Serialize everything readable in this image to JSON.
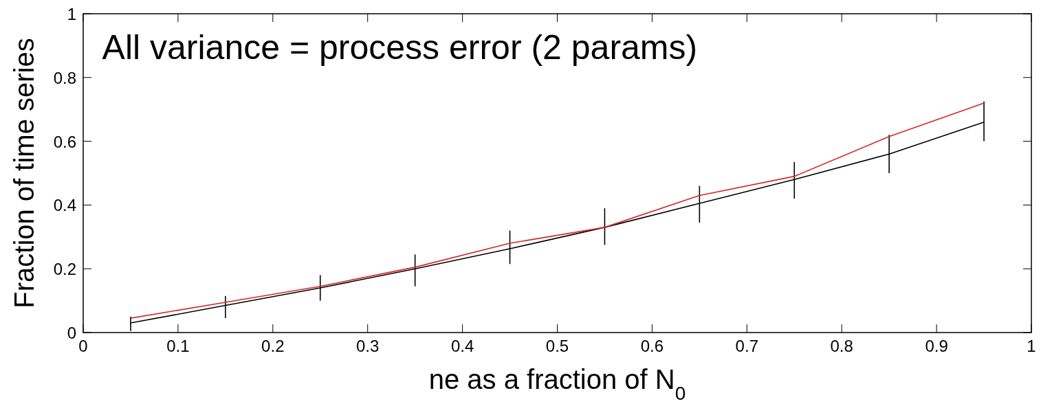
{
  "chart_data": {
    "type": "line",
    "title": "All variance = process error (2 params)",
    "xlabel": "ne as a fraction of N$_{0}$",
    "ylabel": "Fraction of time series",
    "x": [
      0.05,
      0.15,
      0.25,
      0.35,
      0.45,
      0.55,
      0.65,
      0.75,
      0.85,
      0.95
    ],
    "series": [
      {
        "color": "#000000",
        "values": [
          0.03,
          0.085,
          0.14,
          0.2,
          0.263,
          0.33,
          0.405,
          0.48,
          0.56,
          0.66
        ],
        "errors": [
          [
            0.005,
            0.05
          ],
          [
            0.045,
            0.115
          ],
          [
            0.1,
            0.18
          ],
          [
            0.145,
            0.245
          ],
          [
            0.215,
            0.32
          ],
          [
            0.275,
            0.39
          ],
          [
            0.345,
            0.46
          ],
          [
            0.42,
            0.535
          ],
          [
            0.5,
            0.62
          ],
          [
            0.6,
            0.725
          ]
        ]
      },
      {
        "color": "#d62728",
        "values": [
          0.045,
          0.095,
          0.145,
          0.205,
          0.28,
          0.33,
          0.43,
          0.49,
          0.615,
          0.72
        ]
      }
    ],
    "xlim": [
      0,
      1
    ],
    "xticks": [
      0,
      0.1,
      0.2,
      0.3,
      0.4,
      0.5,
      0.6,
      0.7,
      0.8,
      0.9,
      1
    ],
    "ylim": [
      0,
      1
    ],
    "yticks": [
      0,
      0.2,
      0.4,
      0.6,
      0.8,
      1
    ],
    "grid": false,
    "marker": "none",
    "line_style": "solid"
  }
}
